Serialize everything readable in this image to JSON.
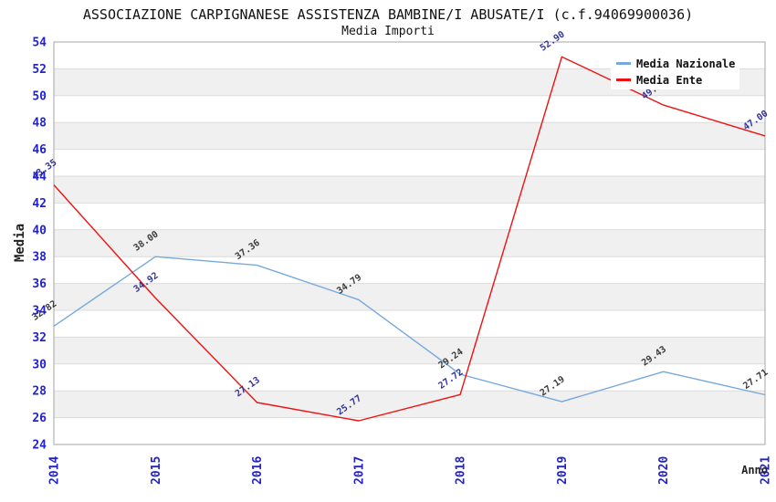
{
  "chart_data": {
    "type": "line",
    "title": "ASSOCIAZIONE CARPIGNANESE ASSISTENZA BAMBINE/I ABUSATE/I (c.f.94069900036)",
    "subtitle": "Media Importi",
    "xlabel": "Anno",
    "ylabel": "Media",
    "x": [
      "2014",
      "2015",
      "2016",
      "2017",
      "2018",
      "2019",
      "2020",
      "2021"
    ],
    "ylim": [
      24,
      54
    ],
    "ytick_step": 2,
    "grid": "horizontal-bands",
    "legend_position": "top-right",
    "series": [
      {
        "name": "Media Nazionale",
        "color": "#76a9dc",
        "label_color": "#3a3a3a",
        "values": [
          32.82,
          38.0,
          37.36,
          34.79,
          29.24,
          27.19,
          29.43,
          27.71
        ]
      },
      {
        "name": "Media Ente",
        "color": "#ee1111",
        "label_color": "#333399",
        "values": [
          43.35,
          34.92,
          27.13,
          25.77,
          27.72,
          52.9,
          49.3,
          47.0
        ]
      }
    ]
  },
  "styles": {
    "tick_color": "#2222cc",
    "band_color": "#f0f0f0",
    "grid_color": "#dcdcdc",
    "border_color": "#a6a6a6",
    "axis_title_color": "#222222",
    "title_color": "#111111",
    "label_font_size": 10,
    "legend_bg": "#ffffff",
    "legend_text_color": "#111111"
  }
}
